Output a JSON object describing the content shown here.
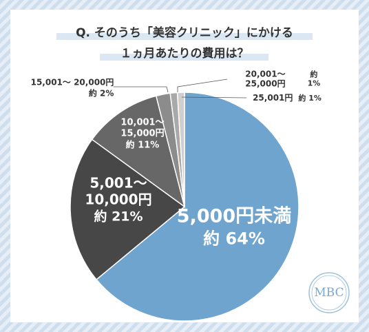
{
  "chart_data": {
    "type": "pie",
    "title": "Q. そのうち「美容クリニック」にかける\n１ヵ月あたりの費用は？",
    "categories": [
      "5,000円未満",
      "5,001〜\n10,000円",
      "10,001〜\n15,000円",
      "15,001〜 20,000円",
      "20,001〜 25,000円",
      "25,001円"
    ],
    "values": [
      64,
      21,
      11,
      2,
      1,
      1
    ],
    "value_labels": [
      "約 64%",
      "約 21%",
      "約 11%",
      "約 2%",
      "約 1%",
      "約 1%"
    ],
    "colors": [
      "#6fa4cf",
      "#474747",
      "#676767",
      "#8c8c8c",
      "#a9a9a9",
      "#cfcfcf"
    ]
  },
  "logo": "MBC"
}
